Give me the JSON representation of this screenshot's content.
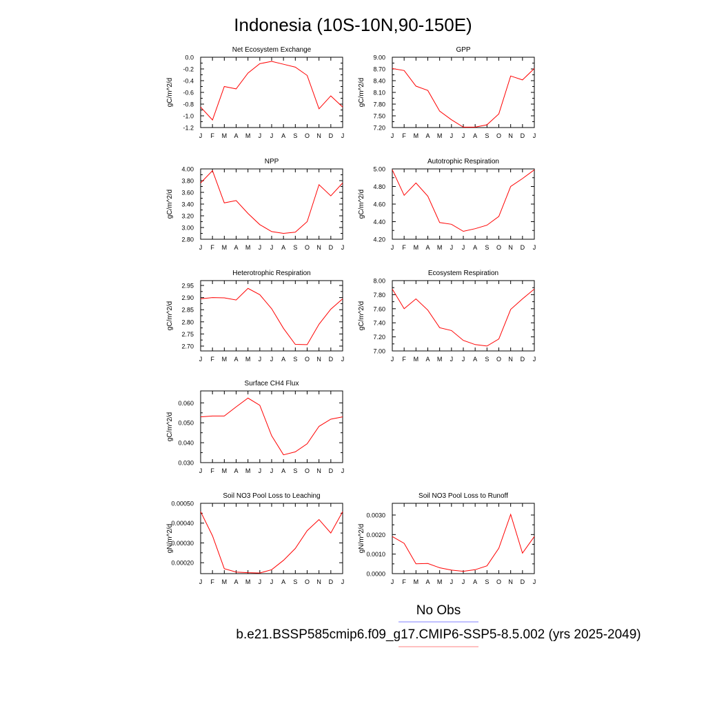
{
  "figure_title": "Indonesia (10S-10N,90-150E)",
  "legend": {
    "entries": [
      {
        "label": "No Obs",
        "color": "#8080ff"
      },
      {
        "label": "b.e21.BSSP585cmip6.f09_g17.CMIP6-SSP5-8.5.002 (yrs 2025-2049)",
        "color": "#ff8080"
      }
    ]
  },
  "chart_data": [
    {
      "type": "line",
      "title": "Net Ecosystem Exchange",
      "ylabel": "gC/m^2/d",
      "categories": [
        "J",
        "F",
        "M",
        "A",
        "M",
        "J",
        "J",
        "A",
        "S",
        "O",
        "N",
        "D",
        "J"
      ],
      "ylim": [
        -1.2,
        0.0
      ],
      "yticks": [
        0.0,
        -0.2,
        -0.4,
        -0.6,
        -0.8,
        -1.0,
        -1.2
      ],
      "ytick_labels": [
        "0.0",
        "-0.2",
        "-0.4",
        "-0.6",
        "-0.8",
        "-1.0",
        "-1.2"
      ],
      "series": [
        {
          "color": "#ff0000",
          "values": [
            -0.85,
            -1.07,
            -0.5,
            -0.54,
            -0.27,
            -0.11,
            -0.07,
            -0.12,
            -0.17,
            -0.31,
            -0.88,
            -0.66,
            -0.85
          ]
        }
      ]
    },
    {
      "type": "line",
      "title": "GPP",
      "ylabel": "gC/m^2/d",
      "categories": [
        "J",
        "F",
        "M",
        "A",
        "M",
        "J",
        "J",
        "A",
        "S",
        "O",
        "N",
        "D",
        "J"
      ],
      "ylim": [
        7.2,
        9.0
      ],
      "yticks": [
        9.0,
        8.7,
        8.4,
        8.1,
        7.8,
        7.5,
        7.2
      ],
      "ytick_labels": [
        "9.00",
        "8.70",
        "8.40",
        "8.10",
        "7.80",
        "7.50",
        "7.20"
      ],
      "series": [
        {
          "color": "#ff0000",
          "values": [
            8.71,
            8.66,
            8.26,
            8.15,
            7.62,
            7.4,
            7.21,
            7.21,
            7.27,
            7.55,
            8.52,
            8.42,
            8.71
          ]
        }
      ]
    },
    {
      "type": "line",
      "title": "NPP",
      "ylabel": "gC/m^2/d",
      "categories": [
        "J",
        "F",
        "M",
        "A",
        "M",
        "J",
        "J",
        "A",
        "S",
        "O",
        "N",
        "D",
        "J"
      ],
      "ylim": [
        2.8,
        4.0
      ],
      "yticks": [
        4.0,
        3.8,
        3.6,
        3.4,
        3.2,
        3.0,
        2.8
      ],
      "ytick_labels": [
        "4.00",
        "3.80",
        "3.60",
        "3.40",
        "3.20",
        "3.00",
        "2.80"
      ],
      "series": [
        {
          "color": "#ff0000",
          "values": [
            3.76,
            3.97,
            3.42,
            3.46,
            3.24,
            3.05,
            2.93,
            2.9,
            2.92,
            3.1,
            3.73,
            3.54,
            3.76
          ]
        }
      ]
    },
    {
      "type": "line",
      "title": "Autotrophic Respiration",
      "ylabel": "gC/m^2/d",
      "categories": [
        "J",
        "F",
        "M",
        "A",
        "M",
        "J",
        "J",
        "A",
        "S",
        "O",
        "N",
        "D",
        "J"
      ],
      "ylim": [
        4.2,
        5.0
      ],
      "yticks": [
        5.0,
        4.8,
        4.6,
        4.4,
        4.2
      ],
      "ytick_labels": [
        "5.00",
        "4.80",
        "4.60",
        "4.40",
        "4.20"
      ],
      "series": [
        {
          "color": "#ff0000",
          "values": [
            4.99,
            4.7,
            4.84,
            4.69,
            4.39,
            4.37,
            4.29,
            4.32,
            4.36,
            4.46,
            4.8,
            4.89,
            4.99
          ]
        }
      ]
    },
    {
      "type": "line",
      "title": "Heterotrophic Respiration",
      "ylabel": "gC/m^2/d",
      "categories": [
        "J",
        "F",
        "M",
        "A",
        "M",
        "J",
        "J",
        "A",
        "S",
        "O",
        "N",
        "D",
        "J"
      ],
      "ylim": [
        2.68,
        2.97
      ],
      "yticks": [
        2.95,
        2.9,
        2.85,
        2.8,
        2.75,
        2.7
      ],
      "ytick_labels": [
        "2.95",
        "2.90",
        "2.85",
        "2.80",
        "2.75",
        "2.70"
      ],
      "series": [
        {
          "color": "#ff0000",
          "values": [
            2.895,
            2.9,
            2.899,
            2.89,
            2.938,
            2.912,
            2.854,
            2.773,
            2.707,
            2.706,
            2.79,
            2.852,
            2.895
          ]
        }
      ]
    },
    {
      "type": "line",
      "title": "Ecosystem Respiration",
      "ylabel": "gC/m^2/d",
      "categories": [
        "J",
        "F",
        "M",
        "A",
        "M",
        "J",
        "J",
        "A",
        "S",
        "O",
        "N",
        "D",
        "J"
      ],
      "ylim": [
        7.0,
        8.0
      ],
      "yticks": [
        8.0,
        7.8,
        7.6,
        7.4,
        7.2,
        7.0
      ],
      "ytick_labels": [
        "8.00",
        "7.80",
        "7.60",
        "7.40",
        "7.20",
        "7.00"
      ],
      "series": [
        {
          "color": "#ff0000",
          "values": [
            7.88,
            7.6,
            7.74,
            7.58,
            7.33,
            7.29,
            7.15,
            7.09,
            7.07,
            7.17,
            7.59,
            7.74,
            7.88
          ]
        }
      ]
    },
    {
      "type": "line",
      "title": "Surface CH4 Flux",
      "ylabel": "gC/m^2/d",
      "categories": [
        "J",
        "F",
        "M",
        "A",
        "M",
        "J",
        "J",
        "A",
        "S",
        "O",
        "N",
        "D",
        "J"
      ],
      "ylim": [
        0.03,
        0.066
      ],
      "yticks": [
        0.06,
        0.05,
        0.04,
        0.03
      ],
      "ytick_labels": [
        "0.060",
        "0.050",
        "0.040",
        "0.030"
      ],
      "series": [
        {
          "color": "#ff0000",
          "values": [
            0.053,
            0.0534,
            0.0534,
            0.058,
            0.0624,
            0.0588,
            0.0435,
            0.0339,
            0.0354,
            0.0395,
            0.0482,
            0.0518,
            0.053
          ]
        }
      ]
    },
    {
      "type": "line",
      "title": "Soil NO3 Pool Loss to Leaching",
      "ylabel": "gN/m^2/d",
      "categories": [
        "J",
        "F",
        "M",
        "A",
        "M",
        "J",
        "J",
        "A",
        "S",
        "O",
        "N",
        "D",
        "J"
      ],
      "ylim": [
        0.000145,
        0.0005
      ],
      "yticks": [
        0.0005,
        0.0004,
        0.0003,
        0.0002
      ],
      "ytick_labels": [
        "0.00050",
        "0.00040",
        "0.00030",
        "0.00020"
      ],
      "series": [
        {
          "color": "#ff0000",
          "values": [
            0.000458,
            0.000336,
            0.00017,
            0.000153,
            0.00015,
            0.000148,
            0.000165,
            0.000212,
            0.000272,
            0.000362,
            0.000418,
            0.00035,
            0.000458
          ]
        }
      ]
    },
    {
      "type": "line",
      "title": "Soil NO3 Pool Loss to Runoff",
      "ylabel": "gN/m^2/d",
      "categories": [
        "J",
        "F",
        "M",
        "A",
        "M",
        "J",
        "J",
        "A",
        "S",
        "O",
        "N",
        "D",
        "J"
      ],
      "ylim": [
        0.0,
        0.0036
      ],
      "yticks": [
        0.003,
        0.002,
        0.001,
        0.0
      ],
      "ytick_labels": [
        "0.0030",
        "0.0020",
        "0.0010",
        "0.0000"
      ],
      "series": [
        {
          "color": "#ff0000",
          "values": [
            0.0019,
            0.00155,
            0.0005,
            0.00052,
            0.0003,
            0.00018,
            0.00012,
            0.0002,
            0.0004,
            0.0013,
            0.00303,
            0.00105,
            0.0019
          ]
        }
      ]
    }
  ]
}
